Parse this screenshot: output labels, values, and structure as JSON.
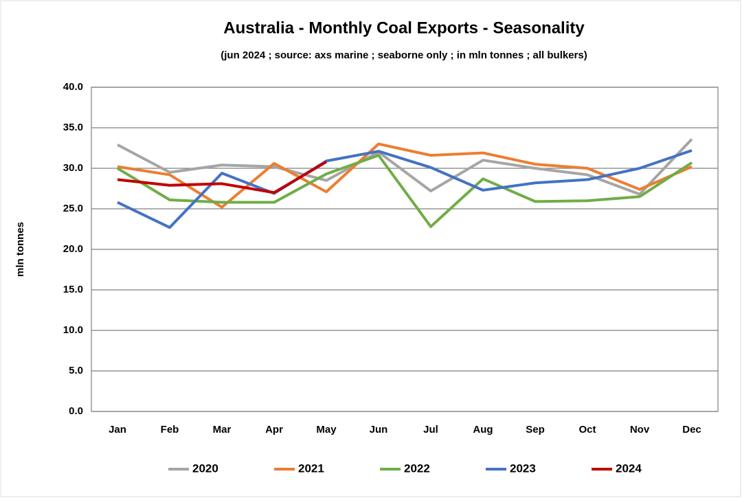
{
  "chart_data": {
    "type": "line",
    "title": "Australia - Monthly Coal Exports - Seasonality",
    "subtitle": "(jun 2024 ; source: axs marine ; seaborne only ; in mln tonnes ; all bulkers)",
    "y_label": "mln tonnes",
    "categories": [
      "Jan",
      "Feb",
      "Mar",
      "Apr",
      "May",
      "Jun",
      "Jul",
      "Aug",
      "Sep",
      "Oct",
      "Nov",
      "Dec"
    ],
    "series": [
      {
        "name": "2020",
        "color": "#a5a5a5",
        "values": [
          32.9,
          29.5,
          30.4,
          30.2,
          28.5,
          32.0,
          27.2,
          31.0,
          30.0,
          29.2,
          26.8,
          33.6
        ]
      },
      {
        "name": "2021",
        "color": "#ed7d31",
        "values": [
          30.2,
          29.2,
          25.2,
          30.6,
          27.1,
          33.0,
          31.6,
          31.9,
          30.5,
          30.0,
          27.4,
          30.2
        ]
      },
      {
        "name": "2022",
        "color": "#70ad47",
        "values": [
          30.0,
          26.1,
          25.8,
          25.8,
          29.3,
          31.6,
          22.8,
          28.7,
          25.9,
          26.0,
          26.5,
          30.7
        ]
      },
      {
        "name": "2023",
        "color": "#4472c4",
        "values": [
          25.8,
          22.7,
          29.4,
          26.9,
          30.9,
          32.1,
          30.1,
          27.3,
          28.2,
          28.6,
          30.0,
          32.2
        ]
      },
      {
        "name": "2024",
        "color": "#c00000",
        "values": [
          28.6,
          27.9,
          28.1,
          27.0,
          30.8,
          null,
          null,
          null,
          null,
          null,
          null,
          null
        ]
      }
    ],
    "ylim": [
      0,
      40
    ],
    "yticks": [
      {
        "value": 0,
        "label": "0.0"
      },
      {
        "value": 5,
        "label": "5.0"
      },
      {
        "value": 10,
        "label": "10.0"
      },
      {
        "value": 15,
        "label": "15.0"
      },
      {
        "value": 20,
        "label": "20.0"
      },
      {
        "value": 25,
        "label": "25.0"
      },
      {
        "value": 30,
        "label": "30.0"
      },
      {
        "value": 35,
        "label": "35.0"
      },
      {
        "value": 40,
        "label": "40.0"
      }
    ],
    "grid": true,
    "legend": "bottom"
  }
}
